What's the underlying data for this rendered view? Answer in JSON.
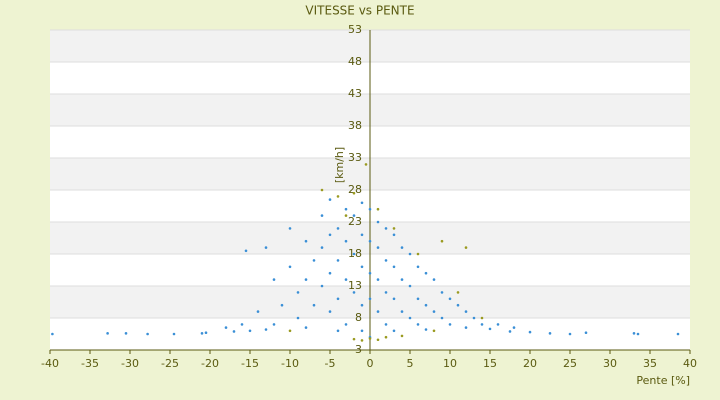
{
  "chart_data": {
    "type": "scatter",
    "title": "VITESSE vs PENTE",
    "x_label": "Pente [%]",
    "y_label": "[km/h]",
    "xlim": [
      -40,
      40
    ],
    "xticks": [
      -40,
      -35,
      -30,
      -25,
      -20,
      -15,
      -10,
      -5,
      0,
      5,
      10,
      15,
      20,
      25,
      30,
      35,
      40
    ],
    "ylim": [
      3,
      53
    ],
    "yticks": [
      3,
      8,
      13,
      18,
      23,
      28,
      33,
      38,
      43,
      48,
      53
    ],
    "grid": true,
    "series": [
      {
        "color": "#3a8fd6",
        "x": [
          -39.7,
          -32.8,
          -30.5,
          -27.8,
          -24.5,
          -21,
          -20.5,
          -17,
          -15,
          -13,
          20,
          22.5,
          25,
          27,
          33,
          33.5,
          38.5,
          17.5,
          15,
          -15.5,
          -13,
          -12,
          -11,
          -10,
          -10,
          -9,
          -9,
          -8,
          -8,
          -7,
          -7,
          -6,
          -6,
          -6,
          -5,
          -5,
          -5,
          -5,
          -4,
          -4,
          -4,
          -3,
          -3,
          -3,
          -3,
          -2,
          -2,
          -2,
          -1,
          -1,
          -1,
          -1,
          -1,
          0,
          0,
          0,
          0,
          0,
          1,
          1,
          1,
          1,
          2,
          2,
          2,
          2,
          3,
          3,
          3,
          4,
          4,
          4,
          5,
          5,
          5,
          6,
          6,
          6,
          7,
          7,
          8,
          8,
          9,
          9,
          10,
          10,
          11,
          12,
          12,
          13,
          14,
          16,
          18,
          -14,
          -12,
          -16,
          -18,
          -8,
          -4,
          3,
          7
        ],
        "values": [
          5.5,
          5.6,
          5.6,
          5.5,
          5.5,
          5.6,
          5.7,
          5.9,
          6,
          6.2,
          5.8,
          5.6,
          5.5,
          5.7,
          5.6,
          5.5,
          5.5,
          5.9,
          6.3,
          18.5,
          19,
          14,
          10,
          22,
          16,
          12,
          8,
          20,
          14,
          17,
          10,
          24,
          19,
          13,
          26.5,
          21,
          15,
          9,
          22,
          17,
          11,
          25,
          20,
          14,
          7,
          24,
          18,
          12,
          26,
          21,
          16,
          10,
          6,
          25,
          20,
          15,
          11,
          5,
          23,
          19,
          14,
          9,
          22,
          17,
          12,
          7,
          21,
          16,
          11,
          19,
          14,
          9,
          18,
          13,
          8,
          16,
          11,
          7,
          15,
          10,
          14,
          9,
          12,
          8,
          11,
          7,
          10,
          9,
          6.5,
          8,
          7,
          7,
          6.5,
          9,
          7,
          7,
          6.5,
          6.5,
          6,
          6,
          6.2
        ]
      },
      {
        "color": "#9a9a20",
        "x": [
          -6,
          -4,
          -2,
          1,
          3,
          -1,
          0,
          1,
          2,
          -2,
          4,
          9,
          12,
          -3,
          -0.5,
          6,
          11,
          14,
          -10,
          8
        ],
        "values": [
          28,
          27,
          27.5,
          25,
          22,
          4.5,
          4.8,
          4.6,
          5,
          4.7,
          5.2,
          20,
          19,
          24,
          32,
          18,
          12,
          8,
          6,
          6
        ]
      }
    ]
  }
}
